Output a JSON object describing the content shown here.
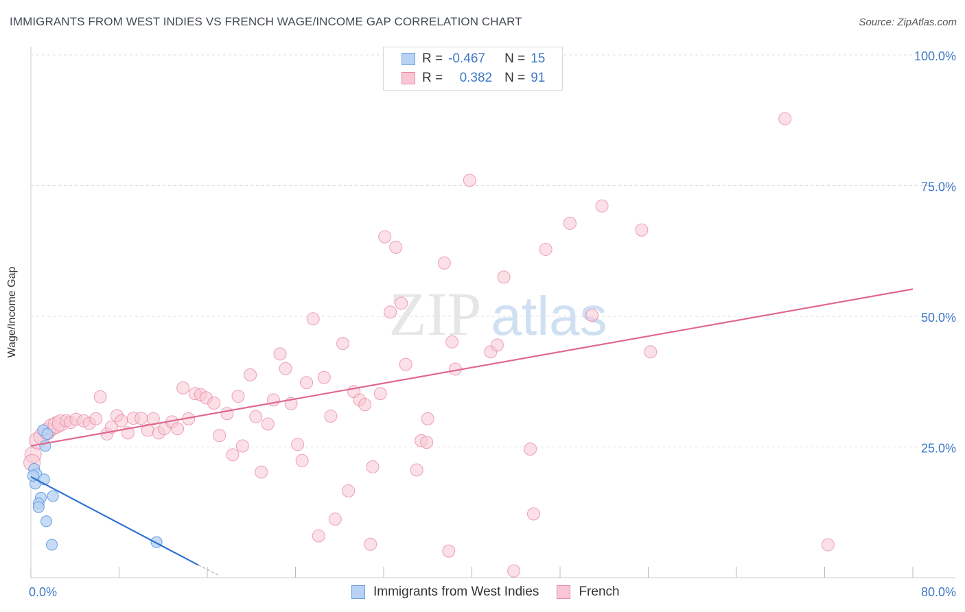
{
  "header": {
    "title": "IMMIGRANTS FROM WEST INDIES VS FRENCH WAGE/INCOME GAP CORRELATION CHART",
    "source": "Source: ZipAtlas.com"
  },
  "watermark": {
    "part1": "ZIP",
    "part2": "atlas"
  },
  "legend": {
    "rows": [
      {
        "r_label": "R =",
        "r_value": "-0.467",
        "n_label": "N =",
        "n_value": "15"
      },
      {
        "r_label": "R =",
        "r_value": "0.382",
        "n_label": "N =",
        "n_value": "91"
      }
    ]
  },
  "bottom_legend": {
    "series1": "Immigrants from West Indies",
    "series2": "French"
  },
  "colors": {
    "blue_fill": "#b8d2f3",
    "blue_stroke": "#6b9fe0",
    "blue_line": "#2d72d2",
    "pink_fill": "#f8c6d4",
    "pink_stroke": "#e88aa6",
    "pink_line": "#e0688f",
    "grid": "#dcdcdc",
    "tick_text": "#3f78c8"
  },
  "chart_data": {
    "type": "scatter",
    "title": "IMMIGRANTS FROM WEST INDIES VS FRENCH WAGE/INCOME GAP CORRELATION CHART",
    "xlabel": "",
    "ylabel": "Wage/Income Gap",
    "xlim": [
      0,
      80
    ],
    "ylim": [
      0,
      100
    ],
    "x_tick_labels": [
      "0.0%",
      "80.0%"
    ],
    "y_tick_labels": [
      "25.0%",
      "50.0%",
      "75.0%",
      "100.0%"
    ],
    "y_tick_values": [
      25,
      50,
      75,
      100
    ],
    "series": [
      {
        "name": "Immigrants from West Indies",
        "R": -0.467,
        "N": 15,
        "trend": {
          "x": [
            0,
            15.2
          ],
          "y": [
            19.3,
            2.4
          ]
        },
        "trend_dashed": {
          "x": [
            15.2,
            17.0
          ],
          "y": [
            2.4,
            0.5
          ]
        },
        "points": [
          [
            1.1,
            28.2
          ],
          [
            1.5,
            27.5
          ],
          [
            1.3,
            25.2
          ],
          [
            0.3,
            20.8
          ],
          [
            0.5,
            19.8
          ],
          [
            0.4,
            18.0
          ],
          [
            1.2,
            18.8
          ],
          [
            0.9,
            15.3
          ],
          [
            2.0,
            15.6
          ],
          [
            0.7,
            14.2
          ],
          [
            0.7,
            13.5
          ],
          [
            1.4,
            10.8
          ],
          [
            1.9,
            6.3
          ],
          [
            11.4,
            6.8
          ],
          [
            0.2,
            19.5
          ]
        ]
      },
      {
        "name": "French",
        "R": 0.382,
        "N": 91,
        "trend": {
          "x": [
            0,
            80
          ],
          "y": [
            25.2,
            55.2
          ]
        },
        "points": [
          [
            0.2,
            23.5
          ],
          [
            0.6,
            26.2
          ],
          [
            1.0,
            27.0
          ],
          [
            1.5,
            28.0
          ],
          [
            1.9,
            28.8
          ],
          [
            2.3,
            29.2
          ],
          [
            2.7,
            29.6
          ],
          [
            3.2,
            30.0
          ],
          [
            3.6,
            29.7
          ],
          [
            4.1,
            30.3
          ],
          [
            4.8,
            30.0
          ],
          [
            5.3,
            29.5
          ],
          [
            5.9,
            30.4
          ],
          [
            6.3,
            34.6
          ],
          [
            6.9,
            27.5
          ],
          [
            7.3,
            28.8
          ],
          [
            7.8,
            31.0
          ],
          [
            8.2,
            30.0
          ],
          [
            8.8,
            27.7
          ],
          [
            9.3,
            30.5
          ],
          [
            10.0,
            30.5
          ],
          [
            10.6,
            28.2
          ],
          [
            11.1,
            30.4
          ],
          [
            11.6,
            27.7
          ],
          [
            12.1,
            28.5
          ],
          [
            12.8,
            29.8
          ],
          [
            13.3,
            28.5
          ],
          [
            13.8,
            36.3
          ],
          [
            14.3,
            30.4
          ],
          [
            14.9,
            35.2
          ],
          [
            15.4,
            35.0
          ],
          [
            15.9,
            34.4
          ],
          [
            16.6,
            33.4
          ],
          [
            17.1,
            27.2
          ],
          [
            17.8,
            31.4
          ],
          [
            18.3,
            23.5
          ],
          [
            18.8,
            34.7
          ],
          [
            19.2,
            25.2
          ],
          [
            19.9,
            38.8
          ],
          [
            20.4,
            30.8
          ],
          [
            20.9,
            20.2
          ],
          [
            21.5,
            29.4
          ],
          [
            22.0,
            34.0
          ],
          [
            22.6,
            42.8
          ],
          [
            23.1,
            40.0
          ],
          [
            23.6,
            33.3
          ],
          [
            24.2,
            25.5
          ],
          [
            24.6,
            22.4
          ],
          [
            25.0,
            37.3
          ],
          [
            25.6,
            49.5
          ],
          [
            26.1,
            8.0
          ],
          [
            26.6,
            38.3
          ],
          [
            27.2,
            30.9
          ],
          [
            27.6,
            11.2
          ],
          [
            28.3,
            44.8
          ],
          [
            28.8,
            16.6
          ],
          [
            29.3,
            35.6
          ],
          [
            29.8,
            34.0
          ],
          [
            30.3,
            33.1
          ],
          [
            30.8,
            6.4
          ],
          [
            31.0,
            21.2
          ],
          [
            31.7,
            35.2
          ],
          [
            32.1,
            65.2
          ],
          [
            32.6,
            50.8
          ],
          [
            33.1,
            63.2
          ],
          [
            33.6,
            52.5
          ],
          [
            34.0,
            40.8
          ],
          [
            35.0,
            20.6
          ],
          [
            35.4,
            26.2
          ],
          [
            36.0,
            30.4
          ],
          [
            35.9,
            25.9
          ],
          [
            37.5,
            60.2
          ],
          [
            37.9,
            5.1
          ],
          [
            38.2,
            45.1
          ],
          [
            38.5,
            39.9
          ],
          [
            39.8,
            76.0
          ],
          [
            41.7,
            43.2
          ],
          [
            42.3,
            44.5
          ],
          [
            42.9,
            57.5
          ],
          [
            43.8,
            1.3
          ],
          [
            45.3,
            24.6
          ],
          [
            45.6,
            12.2
          ],
          [
            46.7,
            62.8
          ],
          [
            48.9,
            67.8
          ],
          [
            50.9,
            50.2
          ],
          [
            51.8,
            71.1
          ],
          [
            55.4,
            66.5
          ],
          [
            56.2,
            43.2
          ],
          [
            68.4,
            87.8
          ],
          [
            72.3,
            6.3
          ],
          [
            0.1,
            22.0
          ]
        ]
      }
    ]
  }
}
